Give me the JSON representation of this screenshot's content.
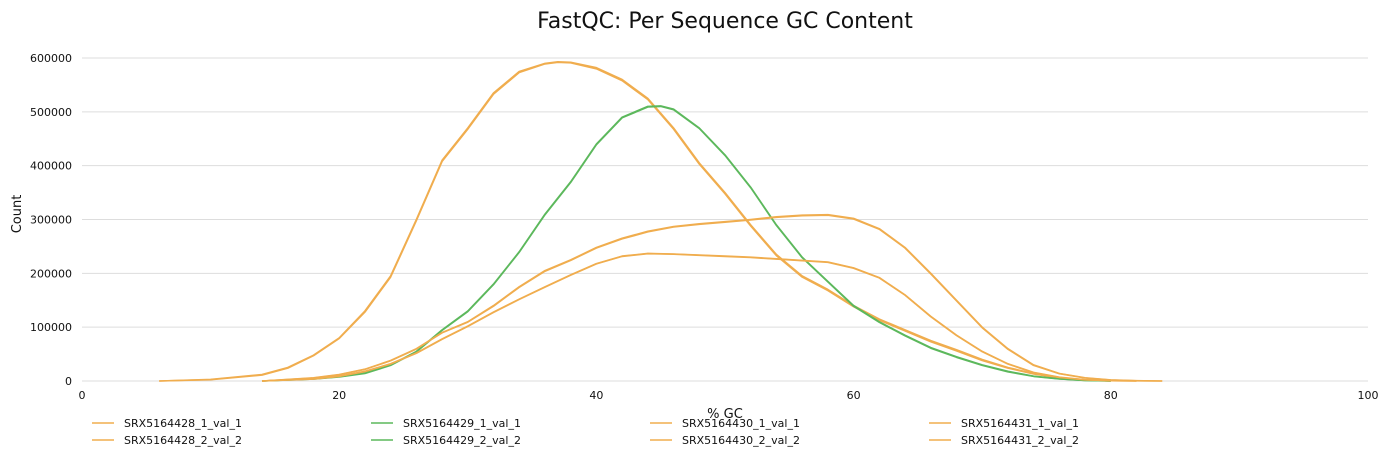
{
  "chart_data": {
    "type": "line",
    "title": "FastQC: Per Sequence GC Content",
    "xlabel": "% GC",
    "ylabel": "Count",
    "xlim": [
      0,
      100
    ],
    "ylim": [
      0,
      600000
    ],
    "x_ticks": [
      0,
      20,
      40,
      60,
      80,
      100
    ],
    "y_ticks": [
      0,
      100000,
      200000,
      300000,
      400000,
      500000,
      600000
    ],
    "grid": true,
    "legend_position": "bottom",
    "series": [
      {
        "name": "SRX5164428_1_val_1",
        "color": "#f0ad4e",
        "points": [
          [
            6,
            0
          ],
          [
            10,
            3000
          ],
          [
            14,
            12000
          ],
          [
            16,
            25000
          ],
          [
            18,
            48000
          ],
          [
            20,
            80000
          ],
          [
            22,
            130000
          ],
          [
            24,
            195000
          ],
          [
            26,
            300000
          ],
          [
            28,
            410000
          ],
          [
            30,
            470000
          ],
          [
            32,
            535000
          ],
          [
            34,
            575000
          ],
          [
            36,
            590000
          ],
          [
            37,
            593000
          ],
          [
            38,
            592000
          ],
          [
            40,
            582000
          ],
          [
            42,
            560000
          ],
          [
            44,
            525000
          ],
          [
            46,
            470000
          ],
          [
            48,
            405000
          ],
          [
            50,
            350000
          ],
          [
            52,
            290000
          ],
          [
            54,
            235000
          ],
          [
            56,
            195000
          ],
          [
            58,
            170000
          ],
          [
            60,
            140000
          ],
          [
            62,
            115000
          ],
          [
            64,
            95000
          ],
          [
            66,
            75000
          ],
          [
            68,
            58000
          ],
          [
            70,
            40000
          ],
          [
            72,
            25000
          ],
          [
            74,
            14000
          ],
          [
            76,
            6000
          ],
          [
            78,
            2000
          ],
          [
            80,
            0
          ]
        ]
      },
      {
        "name": "SRX5164428_2_val_2",
        "color": "#f0ad4e",
        "points": [
          [
            6,
            0
          ],
          [
            10,
            2500
          ],
          [
            14,
            11000
          ],
          [
            16,
            24000
          ],
          [
            18,
            47000
          ],
          [
            20,
            79000
          ],
          [
            22,
            128000
          ],
          [
            24,
            193000
          ],
          [
            26,
            298000
          ],
          [
            28,
            408000
          ],
          [
            30,
            468000
          ],
          [
            32,
            533000
          ],
          [
            34,
            573000
          ],
          [
            36,
            589000
          ],
          [
            37,
            592000
          ],
          [
            38,
            591000
          ],
          [
            40,
            580000
          ],
          [
            42,
            558000
          ],
          [
            44,
            523000
          ],
          [
            46,
            468000
          ],
          [
            48,
            403000
          ],
          [
            50,
            348000
          ],
          [
            52,
            288000
          ],
          [
            54,
            233000
          ],
          [
            56,
            193000
          ],
          [
            58,
            168000
          ],
          [
            60,
            138000
          ],
          [
            62,
            113000
          ],
          [
            64,
            93000
          ],
          [
            66,
            73000
          ],
          [
            68,
            56000
          ],
          [
            70,
            38000
          ],
          [
            72,
            24000
          ],
          [
            74,
            13000
          ],
          [
            76,
            5500
          ],
          [
            78,
            1800
          ],
          [
            80,
            0
          ]
        ]
      },
      {
        "name": "SRX5164429_1_val_1",
        "color": "#5cb85c",
        "points": [
          [
            14,
            0
          ],
          [
            18,
            4000
          ],
          [
            20,
            8000
          ],
          [
            22,
            15000
          ],
          [
            24,
            30000
          ],
          [
            26,
            55000
          ],
          [
            28,
            95000
          ],
          [
            30,
            130000
          ],
          [
            32,
            180000
          ],
          [
            34,
            240000
          ],
          [
            36,
            310000
          ],
          [
            38,
            370000
          ],
          [
            40,
            440000
          ],
          [
            42,
            490000
          ],
          [
            44,
            510000
          ],
          [
            45,
            511000
          ],
          [
            46,
            505000
          ],
          [
            48,
            470000
          ],
          [
            50,
            420000
          ],
          [
            52,
            360000
          ],
          [
            54,
            290000
          ],
          [
            56,
            230000
          ],
          [
            58,
            185000
          ],
          [
            60,
            140000
          ],
          [
            62,
            110000
          ],
          [
            64,
            85000
          ],
          [
            66,
            62000
          ],
          [
            68,
            45000
          ],
          [
            70,
            30000
          ],
          [
            72,
            18000
          ],
          [
            74,
            9000
          ],
          [
            76,
            4000
          ],
          [
            78,
            1000
          ],
          [
            80,
            0
          ]
        ]
      },
      {
        "name": "SRX5164429_2_val_2",
        "color": "#5cb85c",
        "points": [
          [
            14,
            0
          ],
          [
            18,
            3500
          ],
          [
            20,
            7500
          ],
          [
            22,
            14000
          ],
          [
            24,
            29000
          ],
          [
            26,
            54000
          ],
          [
            28,
            94000
          ],
          [
            30,
            129000
          ],
          [
            32,
            179000
          ],
          [
            34,
            239000
          ],
          [
            36,
            309000
          ],
          [
            38,
            369000
          ],
          [
            40,
            439000
          ],
          [
            42,
            489000
          ],
          [
            44,
            509000
          ],
          [
            45,
            510000
          ],
          [
            46,
            504000
          ],
          [
            48,
            469000
          ],
          [
            50,
            419000
          ],
          [
            52,
            359000
          ],
          [
            54,
            289000
          ],
          [
            56,
            229000
          ],
          [
            58,
            184000
          ],
          [
            60,
            139000
          ],
          [
            62,
            109000
          ],
          [
            64,
            84000
          ],
          [
            66,
            61000
          ],
          [
            68,
            44000
          ],
          [
            70,
            29000
          ],
          [
            72,
            17000
          ],
          [
            74,
            8500
          ],
          [
            76,
            3800
          ],
          [
            78,
            900
          ],
          [
            80,
            0
          ]
        ]
      },
      {
        "name": "SRX5164430_1_val_1",
        "color": "#f0ad4e",
        "points": [
          [
            14,
            0
          ],
          [
            18,
            6000
          ],
          [
            20,
            12000
          ],
          [
            22,
            22000
          ],
          [
            24,
            38000
          ],
          [
            26,
            60000
          ],
          [
            28,
            90000
          ],
          [
            30,
            110000
          ],
          [
            32,
            140000
          ],
          [
            34,
            175000
          ],
          [
            36,
            205000
          ],
          [
            38,
            225000
          ],
          [
            40,
            248000
          ],
          [
            42,
            265000
          ],
          [
            44,
            278000
          ],
          [
            46,
            287000
          ],
          [
            48,
            292000
          ],
          [
            50,
            296000
          ],
          [
            52,
            300000
          ],
          [
            54,
            305000
          ],
          [
            56,
            308000
          ],
          [
            58,
            309000
          ],
          [
            60,
            302000
          ],
          [
            62,
            283000
          ],
          [
            64,
            248000
          ],
          [
            66,
            200000
          ],
          [
            68,
            150000
          ],
          [
            70,
            100000
          ],
          [
            72,
            60000
          ],
          [
            74,
            30000
          ],
          [
            76,
            14000
          ],
          [
            78,
            6000
          ],
          [
            80,
            2000
          ],
          [
            82,
            500
          ],
          [
            84,
            0
          ]
        ]
      },
      {
        "name": "SRX5164430_2_val_2",
        "color": "#f0ad4e",
        "points": [
          [
            14,
            0
          ],
          [
            18,
            5500
          ],
          [
            20,
            11500
          ],
          [
            22,
            21500
          ],
          [
            24,
            37500
          ],
          [
            26,
            59500
          ],
          [
            28,
            89500
          ],
          [
            30,
            109500
          ],
          [
            32,
            139000
          ],
          [
            34,
            174000
          ],
          [
            36,
            204000
          ],
          [
            38,
            224000
          ],
          [
            40,
            247000
          ],
          [
            42,
            264000
          ],
          [
            44,
            277000
          ],
          [
            46,
            286000
          ],
          [
            48,
            291000
          ],
          [
            50,
            295000
          ],
          [
            52,
            299000
          ],
          [
            54,
            304000
          ],
          [
            56,
            307000
          ],
          [
            58,
            308000
          ],
          [
            60,
            301000
          ],
          [
            62,
            282000
          ],
          [
            64,
            247000
          ],
          [
            66,
            199000
          ],
          [
            68,
            149000
          ],
          [
            70,
            99000
          ],
          [
            72,
            59000
          ],
          [
            74,
            29000
          ],
          [
            76,
            13500
          ],
          [
            78,
            5500
          ],
          [
            80,
            1800
          ],
          [
            82,
            400
          ],
          [
            84,
            0
          ]
        ]
      },
      {
        "name": "SRX5164431_1_val_1",
        "color": "#f0ad4e",
        "points": [
          [
            14,
            0
          ],
          [
            18,
            4000
          ],
          [
            20,
            9000
          ],
          [
            22,
            18000
          ],
          [
            24,
            32000
          ],
          [
            26,
            52000
          ],
          [
            28,
            78000
          ],
          [
            30,
            102000
          ],
          [
            32,
            128000
          ],
          [
            34,
            152000
          ],
          [
            36,
            175000
          ],
          [
            38,
            197000
          ],
          [
            40,
            218000
          ],
          [
            42,
            232000
          ],
          [
            44,
            237000
          ],
          [
            46,
            236000
          ],
          [
            48,
            234000
          ],
          [
            50,
            232000
          ],
          [
            52,
            230000
          ],
          [
            54,
            227000
          ],
          [
            56,
            224000
          ],
          [
            58,
            221000
          ],
          [
            60,
            210000
          ],
          [
            62,
            192000
          ],
          [
            64,
            160000
          ],
          [
            66,
            120000
          ],
          [
            68,
            85000
          ],
          [
            70,
            55000
          ],
          [
            72,
            32000
          ],
          [
            74,
            16000
          ],
          [
            76,
            7000
          ],
          [
            78,
            2500
          ],
          [
            80,
            600
          ],
          [
            82,
            0
          ]
        ]
      },
      {
        "name": "SRX5164431_2_val_2",
        "color": "#f0ad4e",
        "points": [
          [
            14,
            0
          ],
          [
            18,
            3500
          ],
          [
            20,
            8500
          ],
          [
            22,
            17500
          ],
          [
            24,
            31500
          ],
          [
            26,
            51500
          ],
          [
            28,
            77500
          ],
          [
            30,
            101500
          ],
          [
            32,
            127500
          ],
          [
            34,
            151500
          ],
          [
            36,
            174500
          ],
          [
            38,
            196500
          ],
          [
            40,
            217500
          ],
          [
            42,
            231500
          ],
          [
            44,
            236500
          ],
          [
            46,
            235500
          ],
          [
            48,
            233500
          ],
          [
            50,
            231500
          ],
          [
            52,
            229500
          ],
          [
            54,
            226500
          ],
          [
            56,
            223500
          ],
          [
            58,
            220500
          ],
          [
            60,
            209500
          ],
          [
            62,
            191500
          ],
          [
            64,
            159500
          ],
          [
            66,
            119500
          ],
          [
            68,
            84500
          ],
          [
            70,
            54500
          ],
          [
            72,
            31500
          ],
          [
            74,
            15500
          ],
          [
            76,
            6500
          ],
          [
            78,
            2200
          ],
          [
            80,
            500
          ],
          [
            82,
            0
          ]
        ]
      }
    ]
  }
}
